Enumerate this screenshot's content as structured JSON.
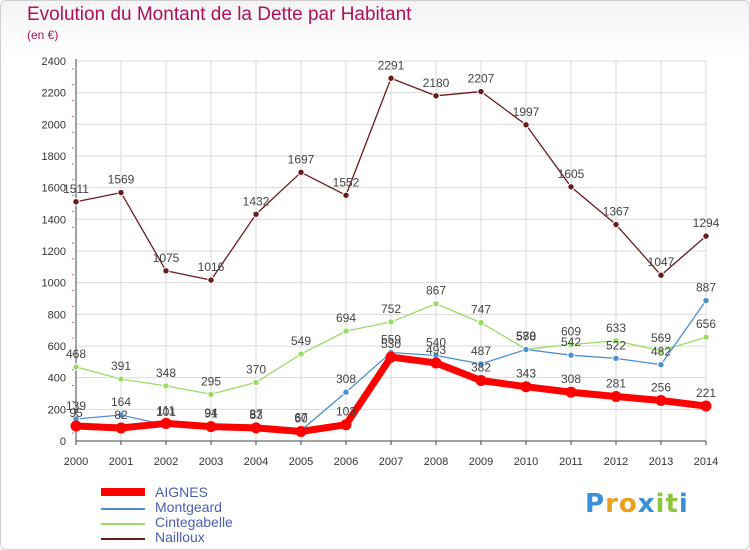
{
  "header": {
    "title": "Evolution du Montant de la Dette par Habitant",
    "subtitle": "(en €)"
  },
  "colors": {
    "title": "#b0105a",
    "legend_text": "#4a5fb5",
    "grid": "#d9d9d9",
    "axis": "#444444"
  },
  "chart_data": {
    "type": "line",
    "x": [
      2000,
      2001,
      2002,
      2003,
      2004,
      2005,
      2006,
      2007,
      2008,
      2009,
      2010,
      2011,
      2012,
      2013,
      2014
    ],
    "ylim": [
      0,
      2400
    ],
    "yticks": [
      0,
      200,
      400,
      600,
      800,
      1000,
      1200,
      1400,
      1600,
      1800,
      2000,
      2200,
      2400
    ],
    "grid": true,
    "legend_position": "bottom-left",
    "series": [
      {
        "name": "Nailloux",
        "color": "#6b1a1a",
        "values": [
          1511,
          1569,
          1075,
          1016,
          1432,
          1697,
          1552,
          2291,
          2180,
          2207,
          1997,
          1605,
          1367,
          1047,
          1294
        ]
      },
      {
        "name": "Cintegabelle",
        "color": "#99dd66",
        "values": [
          468,
          391,
          348,
          295,
          370,
          549,
          694,
          752,
          867,
          747,
          580,
          609,
          633,
          569,
          656
        ]
      },
      {
        "name": "Montgeard",
        "color": "#4a8fd0",
        "values": [
          139,
          164,
          101,
          94,
          87,
          67,
          308,
          559,
          540,
          487,
          578,
          542,
          522,
          482,
          887
        ]
      },
      {
        "name": "AIGNES",
        "color": "#ff0000",
        "values": [
          95,
          82,
          111,
          91,
          83,
          60,
          103,
          530,
          493,
          382,
          343,
          308,
          281,
          256,
          221
        ]
      }
    ]
  },
  "legend": {
    "items": [
      {
        "label": "AIGNES",
        "color": "#ff0000"
      },
      {
        "label": "Montgeard",
        "color": "#4a8fd0"
      },
      {
        "label": "Cintegabelle",
        "color": "#99dd66"
      },
      {
        "label": "Nailloux",
        "color": "#6b1a1a"
      }
    ]
  },
  "logo": {
    "letters": [
      "P",
      "r",
      "o",
      "x",
      "i",
      "t",
      "i"
    ],
    "colors": [
      "#3a8fd8",
      "#e8a020",
      "#e8a020",
      "#3a8fd8",
      "#8dc63f",
      "#8dc63f",
      "#3a8fd8"
    ]
  }
}
